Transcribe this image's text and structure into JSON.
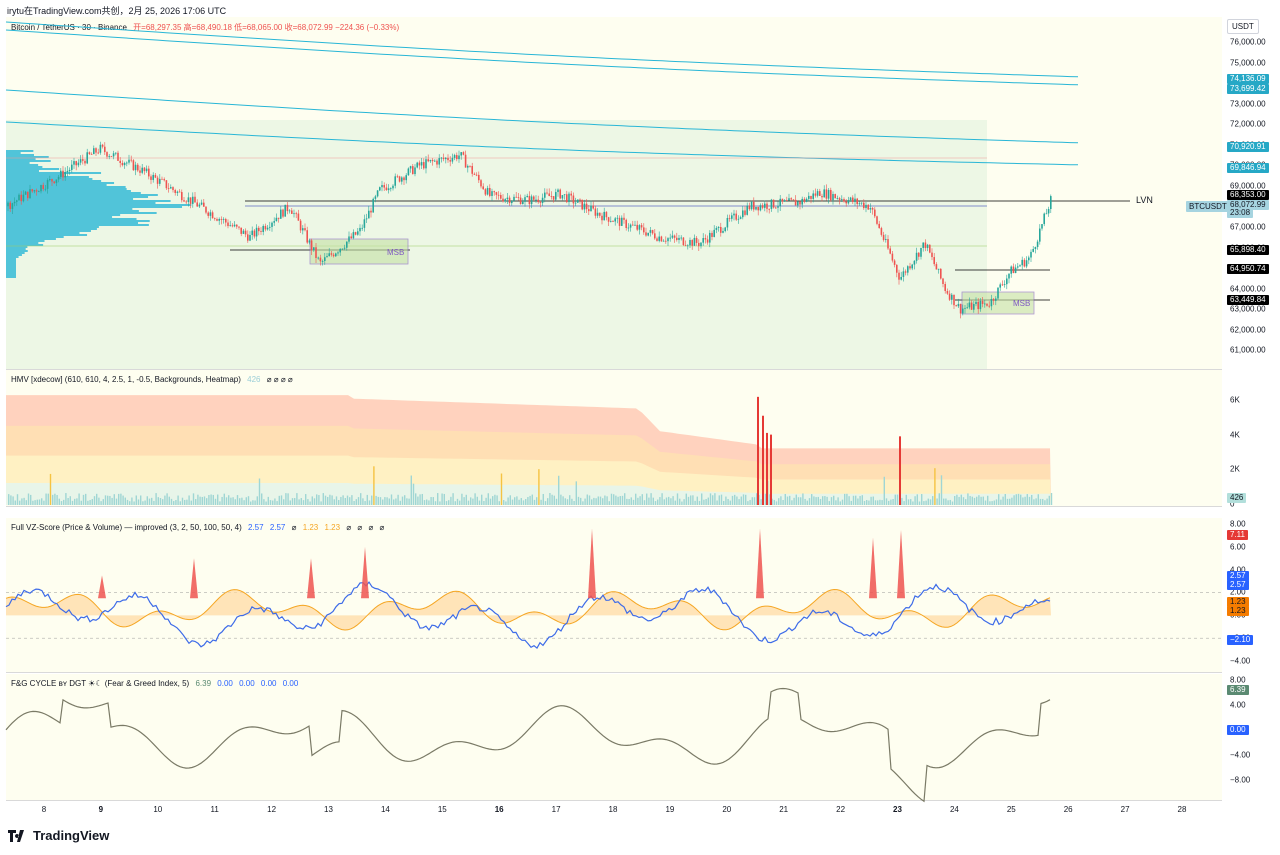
{
  "header": {
    "text": "irytu在TradingView.com共创，2月 25, 2026 17:06 UTC"
  },
  "main_chart": {
    "legend_symbol": "Bitcoin / TetherUS · 30 · Binance",
    "legend_ohlc": "开=68,297.35 高=68,490.18 低=68,065.00 收=68,072.99 −224.36 (−0.33%)",
    "currency": "USDT",
    "price_ticks": [
      "76,000.00",
      "75,000.00",
      "74,000.00",
      "73,000.00",
      "72,000.00",
      "71,000.00",
      "70,000.00",
      "69,000.00",
      "68,000.00",
      "67,000.00",
      "66,000.00",
      "65,000.00",
      "64,000.00",
      "63,000.00",
      "62,000.00",
      "61,000.00"
    ],
    "price_tags": [
      {
        "text": "74,136.09",
        "bg": "#26a8c6",
        "fg": "#ffffff"
      },
      {
        "text": "73,699.42",
        "bg": "#26a8c6",
        "fg": "#ffffff"
      },
      {
        "text": "70,920.91",
        "bg": "#26a8c6",
        "fg": "#ffffff"
      },
      {
        "text": "69,846.94",
        "bg": "#26a8c6",
        "fg": "#ffffff"
      },
      {
        "text": "68,353.00",
        "bg": "#000000",
        "fg": "#ffffff"
      },
      {
        "text": "68,072.99",
        "bg": "#a6d4e0",
        "fg": "#131722"
      },
      {
        "text": "23:08",
        "bg": "#a6d4e0",
        "fg": "#131722"
      },
      {
        "text": "65,898.40",
        "bg": "#000000",
        "fg": "#ffffff"
      },
      {
        "text": "64,950.74",
        "bg": "#000000",
        "fg": "#ffffff"
      },
      {
        "text": "63,449.84",
        "bg": "#000000",
        "fg": "#ffffff"
      }
    ],
    "symbol_tag": "BTCUSDT",
    "lvn_label": "LVN",
    "msb_label": "MSB"
  },
  "hmv": {
    "legend": "HMV [xdecow] (610, 610, 4, 2.5, 1, -0.5, Backgrounds, Heatmap)",
    "value": "426",
    "ticks": [
      "6K",
      "4K",
      "2K",
      "0"
    ],
    "tag": "426"
  },
  "vz": {
    "legend": "Full VZ-Score (Price & Volume) — improved (3, 2, 50, 100, 50, 4)",
    "values": [
      "2.57",
      "2.57",
      "⌀",
      "1.23",
      "1.23",
      "⌀",
      "⌀",
      "⌀",
      "⌀"
    ],
    "ticks": [
      "8.00",
      "6.00",
      "4.00",
      "2.00",
      "0.00",
      "−2.00",
      "−4.00"
    ],
    "tags": [
      {
        "text": "7.11",
        "bg": "#e53935",
        "fg": "#ffffff"
      },
      {
        "text": "2.57",
        "bg": "#2962ff",
        "fg": "#ffffff"
      },
      {
        "text": "2.57",
        "bg": "#2962ff",
        "fg": "#ffffff"
      },
      {
        "text": "1.23",
        "bg": "#f57c00",
        "fg": "#131722"
      },
      {
        "text": "1.23",
        "bg": "#f57c00",
        "fg": "#131722"
      },
      {
        "text": "−2.10",
        "bg": "#2962ff",
        "fg": "#ffffff"
      }
    ]
  },
  "fg": {
    "legend": "F&G CYCLE ʙʏ DGT ☀☾ (Fear & Greed Index, 5)",
    "values": [
      "6.39",
      "0.00",
      "0.00",
      "0.00",
      "0.00"
    ],
    "ticks": [
      "8.00",
      "4.00",
      "0.00",
      "−4.00",
      "−8.00"
    ],
    "tags": [
      {
        "text": "6.39",
        "bg": "#5b8a72",
        "fg": "#ffffff"
      },
      {
        "text": "0.00",
        "bg": "#2962ff",
        "fg": "#ffffff"
      }
    ]
  },
  "hmv_nulls": "⌀ ⌀ ⌀ ⌀",
  "x_axis": {
    "labels": [
      {
        "text": "8",
        "bold": false
      },
      {
        "text": "9",
        "bold": true
      },
      {
        "text": "10",
        "bold": false
      },
      {
        "text": "11",
        "bold": false
      },
      {
        "text": "12",
        "bold": false
      },
      {
        "text": "13",
        "bold": false
      },
      {
        "text": "14",
        "bold": false
      },
      {
        "text": "15",
        "bold": false
      },
      {
        "text": "16",
        "bold": true
      },
      {
        "text": "17",
        "bold": false
      },
      {
        "text": "18",
        "bold": false
      },
      {
        "text": "19",
        "bold": false
      },
      {
        "text": "20",
        "bold": false
      },
      {
        "text": "21",
        "bold": false
      },
      {
        "text": "22",
        "bold": false
      },
      {
        "text": "23",
        "bold": true
      },
      {
        "text": "24",
        "bold": false
      },
      {
        "text": "25",
        "bold": false
      },
      {
        "text": "26",
        "bold": false
      },
      {
        "text": "27",
        "bold": false
      },
      {
        "text": "28",
        "bold": false
      }
    ]
  },
  "footer": {
    "brand": "TradingView"
  },
  "colors": {
    "up": "#26a69a",
    "down": "#ef5350",
    "profile": "#29b6d6",
    "vz_blue": "#3d6be8",
    "vz_orange": "#f5a623",
    "fg_line": "#7a7a66"
  }
}
